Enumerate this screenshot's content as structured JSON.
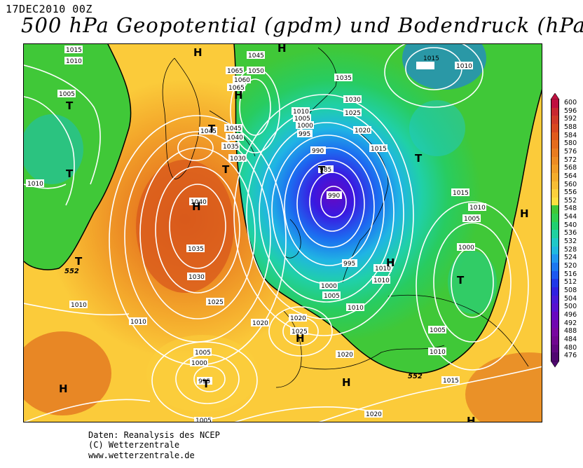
{
  "header": {
    "date": "17DEC2010 00Z",
    "title": "500 hPa Geopotential (gpdm) und Bodendruck (hPa)"
  },
  "credits": [
    "Daten: Reanalysis des NCEP",
    "(C) Wetterzentrale",
    "www.wetterzentrale.de"
  ],
  "pressure_labels": {
    "l1": "1015",
    "l2": "1010",
    "l3": "1005",
    "l4": "1045",
    "l5": "1065",
    "l6": "1050",
    "l7": "1060",
    "l8": "1065",
    "l9": "1035",
    "l10": "1030",
    "l11": "1025",
    "l12": "1020",
    "l13": "1015",
    "l14": "1010",
    "l15": "1005",
    "l16": "1000",
    "l17": "995",
    "l18": "990",
    "l19": "985",
    "l20": "990",
    "l21": "1045",
    "l22": "1040",
    "l23": "1035",
    "l24": "1030",
    "l25": "1045",
    "l26": "1040",
    "l27": "1035",
    "l28": "1030",
    "l29": "1025",
    "l30": "1020",
    "l31": "1010",
    "l32": "1010",
    "l33": "1005",
    "l34": "1000",
    "l35": "995",
    "l36": "1010",
    "l37": "1010",
    "l38": "1000",
    "l39": "1005",
    "l40": "1010",
    "l41": "1015",
    "l42": "1010",
    "l43": "1005",
    "l44": "1000",
    "l45": "1005",
    "l46": "1010",
    "l47": "1015",
    "l48": "1020",
    "l49": "1025",
    "l50": "1020",
    "l51": "1020",
    "l52": "1005",
    "l53": "1000",
    "l54": "995",
    "l55": "1005",
    "l56": "1020",
    "l57": "1010",
    "l58": "1015",
    "l59": "1010",
    "l60": "1005"
  },
  "pressure_centers": {
    "p1": "H",
    "p2": "H",
    "p3": "T",
    "p4": "T",
    "p5": "H",
    "p6": "T",
    "p7": "T",
    "p8": "H",
    "p9": "T",
    "p10": "T",
    "p11": "H",
    "p12": "T",
    "p13": "H",
    "p14": "T",
    "p15": "H",
    "p16": "H",
    "p17": "H",
    "p18": "H"
  },
  "contour_552_labels": [
    "552",
    "552"
  ],
  "legend": {
    "values": [
      "600",
      "596",
      "592",
      "588",
      "584",
      "580",
      "576",
      "572",
      "568",
      "564",
      "560",
      "556",
      "552",
      "548",
      "544",
      "540",
      "536",
      "532",
      "528",
      "524",
      "520",
      "516",
      "512",
      "508",
      "504",
      "500",
      "496",
      "492",
      "488",
      "484",
      "480",
      "476"
    ],
    "colors": [
      "#c01040",
      "#c82830",
      "#d03a28",
      "#d84820",
      "#e05a1c",
      "#e46c1c",
      "#e87c20",
      "#ec8c24",
      "#f09c28",
      "#f4ac2c",
      "#f8bc34",
      "#fcd03c",
      "#fce040",
      "#40c838",
      "#30d050",
      "#20d070",
      "#20d0a0",
      "#20c8c8",
      "#20b8e0",
      "#2098f0",
      "#1c78f0",
      "#1c58f0",
      "#2038e8",
      "#3020e0",
      "#4818d8",
      "#5810d0",
      "#6808c0",
      "#7008b0",
      "#7808a0",
      "#700890",
      "#600880",
      "#500870"
    ]
  },
  "colors": {
    "contour": "#ffffff",
    "boundary_552": "#000000",
    "coastline": "#000000"
  }
}
